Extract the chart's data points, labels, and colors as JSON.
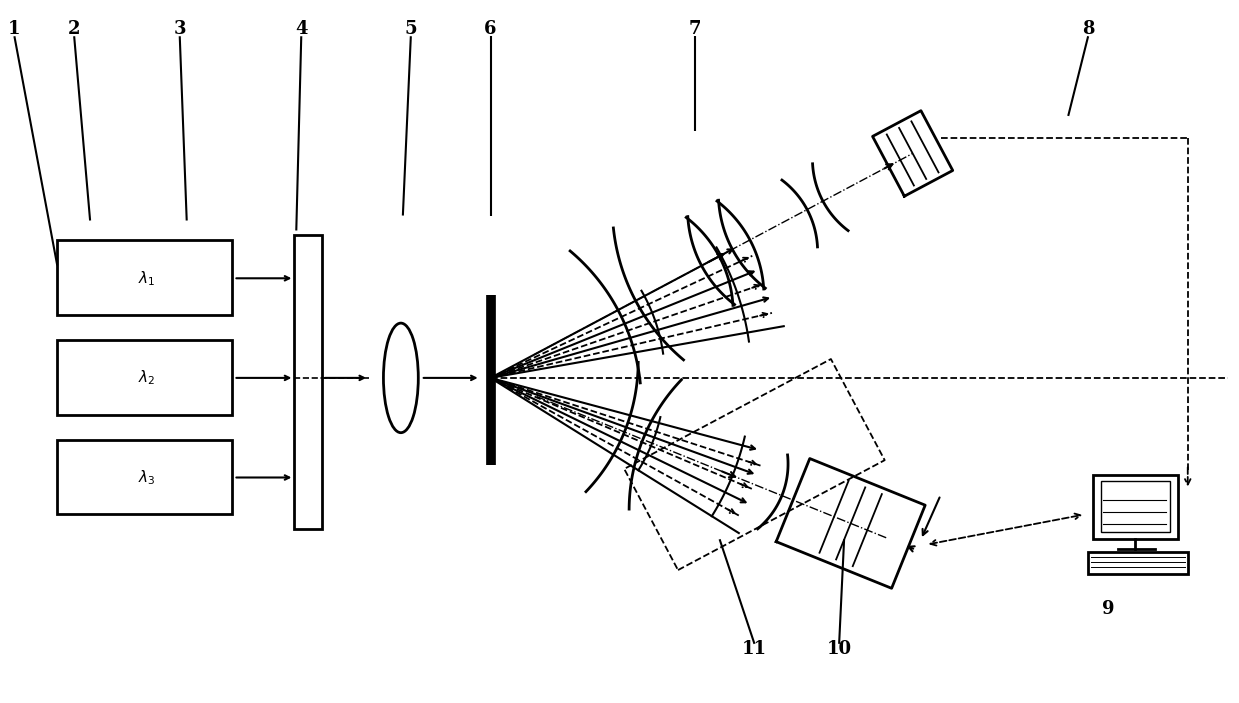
{
  "bg_color": "#ffffff",
  "line_color": "#000000",
  "fig_width": 12.39,
  "fig_height": 7.03,
  "dpi": 100
}
